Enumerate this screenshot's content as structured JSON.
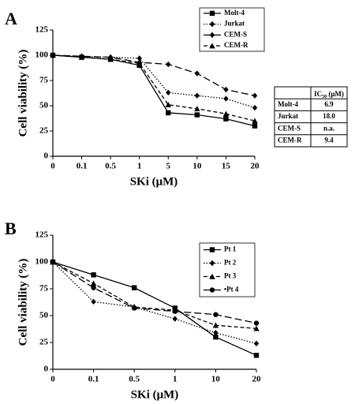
{
  "chart_data": [
    {
      "type": "line",
      "panel": "A",
      "ylabel": "Cell viability (%)",
      "xlabel": "SKi (μM)",
      "categories": [
        "0",
        "0.1",
        "0.5",
        "1",
        "5",
        "10",
        "15",
        "20"
      ],
      "ylim": [
        0,
        125
      ],
      "yticks": [
        0,
        25,
        50,
        75,
        100,
        125
      ],
      "series": [
        {
          "name": "Molt-4",
          "color": "#000000",
          "dash": "solid",
          "marker": "square",
          "values": [
            100,
            98,
            96,
            90,
            43,
            41,
            37,
            30
          ]
        },
        {
          "name": "Jurkat",
          "color": "#000000",
          "dash": "dotted",
          "marker": "diamond",
          "values": [
            100,
            99,
            98,
            97,
            63,
            60,
            57,
            48
          ]
        },
        {
          "name": "CEM-S",
          "color": "#000000",
          "dash": "longdash",
          "marker": "diamond",
          "values": [
            100,
            99,
            98,
            93,
            91,
            82,
            66,
            60
          ]
        },
        {
          "name": "CEM-R",
          "color": "#000000",
          "dash": "dashed",
          "marker": "triangle",
          "values": [
            100,
            98,
            96,
            92,
            51,
            47,
            42,
            35
          ]
        }
      ]
    },
    {
      "type": "line",
      "panel": "B",
      "ylabel": "Cell viability (%)",
      "xlabel": "SKi (μM)",
      "categories": [
        "0",
        "0.1",
        "0.5",
        "1",
        "10",
        "20"
      ],
      "ylim": [
        0,
        125
      ],
      "yticks": [
        0,
        25,
        50,
        75,
        100,
        125
      ],
      "series": [
        {
          "name": "Pt 1",
          "color": "#000000",
          "dash": "solid",
          "marker": "square",
          "values": [
            100,
            88,
            76,
            57,
            30,
            13
          ]
        },
        {
          "name": "Pt 2",
          "color": "#000000",
          "dash": "dotted",
          "marker": "diamond",
          "values": [
            100,
            63,
            58,
            47,
            34,
            24
          ]
        },
        {
          "name": "Pt 3",
          "color": "#000000",
          "dash": "dashed",
          "marker": "triangle",
          "values": [
            100,
            80,
            58,
            55,
            41,
            38
          ]
        },
        {
          "name": "•Pt 4",
          "color": "#000000",
          "dash": "longdash",
          "marker": "circle",
          "values": [
            100,
            76,
            57,
            54,
            51,
            43
          ]
        }
      ]
    }
  ],
  "table": {
    "header": {
      "label": "IC",
      "sub": "50",
      "unit": " (μM)"
    },
    "rows": [
      [
        "Molt-4",
        "6.9"
      ],
      [
        "Jurkat",
        "18.0"
      ],
      [
        "CEM-S",
        "n.a."
      ],
      [
        "CEM-R",
        "9.4"
      ]
    ]
  }
}
